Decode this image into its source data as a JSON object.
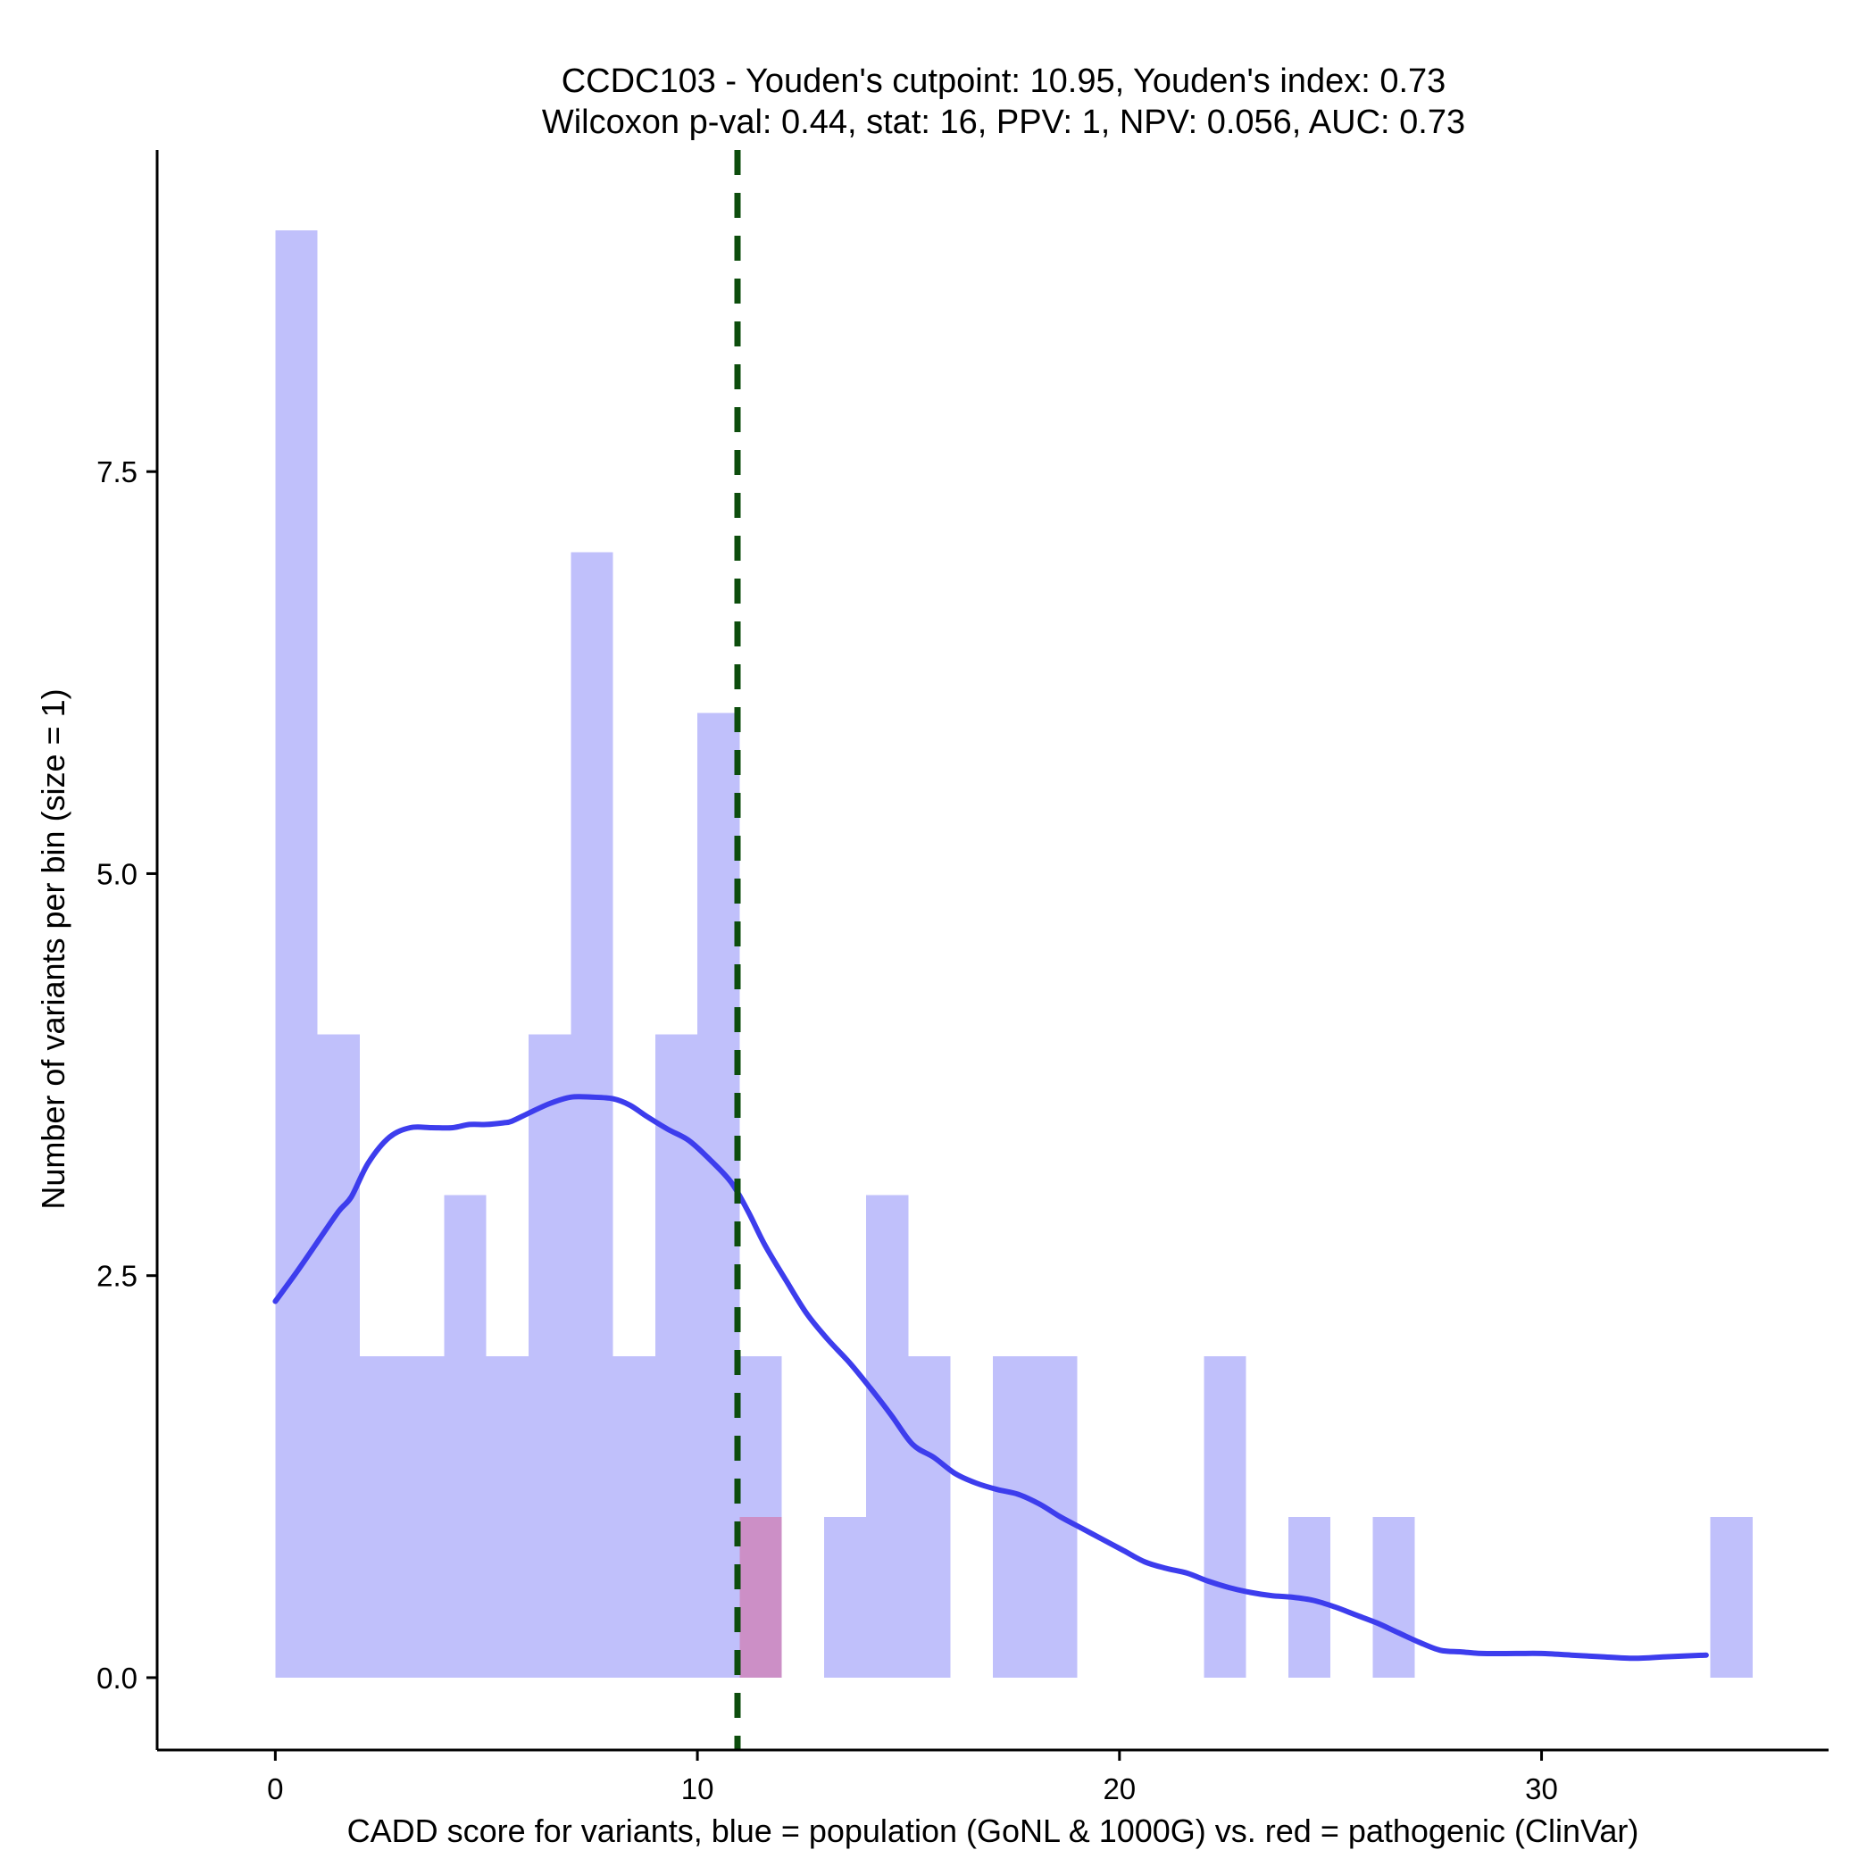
{
  "chart_data": {
    "type": "bar",
    "title_lines": [
      "CCDC103 - Youden's cutpoint: 10.95, Youden's index: 0.73",
      "Wilcoxon p-val: 0.44, stat: 16, PPV: 1, NPV: 0.056, AUC: 0.73"
    ],
    "xlabel": "CADD score for variants, blue = population (GoNL & 1000G) vs. red = pathogenic (ClinVar)",
    "ylabel": "Number of variants per bin (size = 1)",
    "xlim": [
      -2.8,
      36.8
    ],
    "ylim": [
      -0.45,
      9.5
    ],
    "xticks": [
      0,
      10,
      20,
      30
    ],
    "xtick_labels": [
      "0",
      "10",
      "20",
      "30"
    ],
    "yticks": [
      0,
      2.5,
      5,
      7.5
    ],
    "ytick_labels": [
      "0.0",
      "2.5",
      "5.0",
      "7.5"
    ],
    "bin_width": 1,
    "series": [
      {
        "name": "population (GoNL & 1000G)",
        "color": "#c0c0fb",
        "bins": [
          {
            "x0": 0,
            "count": 9
          },
          {
            "x0": 1,
            "count": 4
          },
          {
            "x0": 2,
            "count": 2
          },
          {
            "x0": 3,
            "count": 2
          },
          {
            "x0": 4,
            "count": 3
          },
          {
            "x0": 5,
            "count": 2
          },
          {
            "x0": 6,
            "count": 4
          },
          {
            "x0": 7,
            "count": 7
          },
          {
            "x0": 8,
            "count": 2
          },
          {
            "x0": 9,
            "count": 4
          },
          {
            "x0": 10,
            "count": 6
          },
          {
            "x0": 11,
            "count": 2
          },
          {
            "x0": 13,
            "count": 1
          },
          {
            "x0": 14,
            "count": 3
          },
          {
            "x0": 15,
            "count": 2
          },
          {
            "x0": 17,
            "count": 2
          },
          {
            "x0": 18,
            "count": 2
          },
          {
            "x0": 22,
            "count": 2
          },
          {
            "x0": 24,
            "count": 1
          },
          {
            "x0": 26,
            "count": 1
          },
          {
            "x0": 34,
            "count": 1
          }
        ]
      },
      {
        "name": "pathogenic (ClinVar)",
        "color": "#cc8fc6",
        "bins": [
          {
            "x0": 11,
            "count": 1
          }
        ]
      }
    ],
    "density_curve": {
      "name": "population density (scaled)",
      "color": "#3d3ded",
      "x": [
        0,
        0.5,
        1,
        1.5,
        1.8,
        2.2,
        2.7,
        3.2,
        3.7,
        4.2,
        4.6,
        5.0,
        5.4,
        5.6,
        6.0,
        6.5,
        7.0,
        7.5,
        8.0,
        8.4,
        8.8,
        9.3,
        9.8,
        10.3,
        10.8,
        11.2,
        11.6,
        12.1,
        12.6,
        13.1,
        13.6,
        14.1,
        14.6,
        15.1,
        15.6,
        16.1,
        16.6,
        17.1,
        17.6,
        18.1,
        18.6,
        19.1,
        19.6,
        20.1,
        20.6,
        21.1,
        21.6,
        22.1,
        22.6,
        23.1,
        23.6,
        24.1,
        24.6,
        25.1,
        25.6,
        26.1,
        26.6,
        27.1,
        27.6,
        28.1,
        28.6,
        29.4,
        30.0,
        30.7,
        31.4,
        32.2,
        33.0,
        33.9
      ],
      "y": [
        2.34,
        2.52,
        2.71,
        2.9,
        2.99,
        3.2,
        3.36,
        3.42,
        3.42,
        3.42,
        3.44,
        3.44,
        3.45,
        3.46,
        3.51,
        3.57,
        3.61,
        3.61,
        3.6,
        3.56,
        3.49,
        3.41,
        3.34,
        3.22,
        3.08,
        2.9,
        2.69,
        2.47,
        2.26,
        2.1,
        1.96,
        1.8,
        1.63,
        1.45,
        1.37,
        1.27,
        1.21,
        1.17,
        1.14,
        1.08,
        1.0,
        0.93,
        0.86,
        0.79,
        0.72,
        0.68,
        0.65,
        0.6,
        0.56,
        0.53,
        0.51,
        0.5,
        0.48,
        0.44,
        0.39,
        0.34,
        0.28,
        0.22,
        0.17,
        0.16,
        0.15,
        0.15,
        0.15,
        0.14,
        0.13,
        0.12,
        0.13,
        0.14
      ]
    },
    "cutpoint": {
      "x": 10.95,
      "color": "#0d4d0d",
      "style": "dashed"
    },
    "grid": false,
    "legend": "none"
  }
}
